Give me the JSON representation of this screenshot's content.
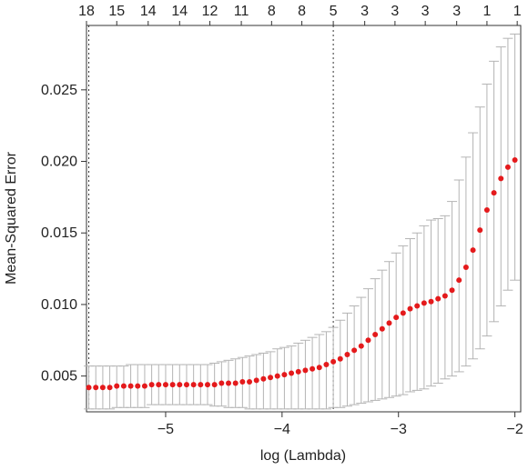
{
  "chart_data": {
    "type": "scatter",
    "title": "",
    "xlabel": "log (Lambda)",
    "ylabel": "Mean-Squared Error",
    "xlim": [
      -5.68,
      -1.95
    ],
    "ylim": [
      0.0025,
      0.0295
    ],
    "x_ticks": [
      -5,
      -4,
      -3,
      -2
    ],
    "x_tick_labels": [
      "−5",
      "−4",
      "−3",
      "−2"
    ],
    "y_ticks": [
      0.005,
      0.01,
      0.015,
      0.02,
      0.025
    ],
    "y_tick_labels": [
      "0.005",
      "0.010",
      "0.015",
      "0.020",
      "0.025"
    ],
    "top_axis": {
      "x": [
        -5.68,
        -5.42,
        -5.15,
        -4.88,
        -4.62,
        -4.35,
        -4.09,
        -3.83,
        -3.56,
        -3.29,
        -3.03,
        -2.77,
        -2.5,
        -2.24,
        -1.98
      ],
      "labels": [
        "18",
        "15",
        "14",
        "14",
        "12",
        "11",
        "8",
        "8",
        "5",
        "3",
        "3",
        "3",
        "3",
        "1",
        "1"
      ]
    },
    "vlines": [
      -5.66,
      -3.56
    ],
    "grid": false,
    "point_color": "#e41a1c",
    "errorbar_color": "#b4b4b4",
    "points": {
      "x": [
        -5.66,
        -5.6,
        -5.54,
        -5.48,
        -5.42,
        -5.36,
        -5.3,
        -5.24,
        -5.18,
        -5.12,
        -5.06,
        -5.0,
        -4.94,
        -4.88,
        -4.82,
        -4.76,
        -4.7,
        -4.64,
        -4.58,
        -4.52,
        -4.46,
        -4.4,
        -4.34,
        -4.28,
        -4.22,
        -4.16,
        -4.1,
        -4.04,
        -3.98,
        -3.92,
        -3.86,
        -3.8,
        -3.74,
        -3.68,
        -3.62,
        -3.56,
        -3.5,
        -3.44,
        -3.38,
        -3.32,
        -3.26,
        -3.2,
        -3.14,
        -3.08,
        -3.02,
        -2.96,
        -2.9,
        -2.84,
        -2.78,
        -2.72,
        -2.66,
        -2.6,
        -2.54,
        -2.48,
        -2.42,
        -2.36,
        -2.3,
        -2.24,
        -2.18,
        -2.12,
        -2.06,
        -2.0
      ],
      "y": [
        0.0042,
        0.0042,
        0.0042,
        0.0042,
        0.0043,
        0.0043,
        0.0043,
        0.0043,
        0.0043,
        0.0044,
        0.0044,
        0.0044,
        0.0044,
        0.0044,
        0.0044,
        0.0044,
        0.0044,
        0.0044,
        0.0044,
        0.0045,
        0.0045,
        0.0045,
        0.0046,
        0.0046,
        0.0047,
        0.0048,
        0.0049,
        0.005,
        0.0051,
        0.0052,
        0.0053,
        0.0054,
        0.0055,
        0.0056,
        0.0058,
        0.006,
        0.0062,
        0.0065,
        0.0068,
        0.0071,
        0.0075,
        0.0079,
        0.0083,
        0.0087,
        0.0091,
        0.0094,
        0.0097,
        0.0099,
        0.0101,
        0.0102,
        0.0104,
        0.0106,
        0.011,
        0.0117,
        0.0126,
        0.0138,
        0.0152,
        0.0166,
        0.0178,
        0.0188,
        0.0196,
        0.0201
      ],
      "upper": [
        0.0057,
        0.0057,
        0.0057,
        0.0057,
        0.0057,
        0.0057,
        0.0058,
        0.0058,
        0.0058,
        0.0058,
        0.0058,
        0.0058,
        0.0058,
        0.0058,
        0.0058,
        0.0058,
        0.0058,
        0.0058,
        0.0059,
        0.006,
        0.0061,
        0.0062,
        0.0063,
        0.0064,
        0.0065,
        0.0066,
        0.0067,
        0.0069,
        0.007,
        0.0071,
        0.0073,
        0.0075,
        0.0077,
        0.0079,
        0.0081,
        0.0084,
        0.0089,
        0.0094,
        0.0099,
        0.0105,
        0.0111,
        0.0118,
        0.0124,
        0.013,
        0.0136,
        0.0141,
        0.0146,
        0.015,
        0.0155,
        0.0159,
        0.016,
        0.0162,
        0.0172,
        0.0187,
        0.0203,
        0.022,
        0.0238,
        0.0254,
        0.027,
        0.028,
        0.0286,
        0.0289
      ],
      "lower": [
        0.0027,
        0.0027,
        0.0027,
        0.0027,
        0.0028,
        0.0028,
        0.0028,
        0.0028,
        0.0028,
        0.003,
        0.003,
        0.003,
        0.003,
        0.003,
        0.003,
        0.003,
        0.003,
        0.003,
        0.0029,
        0.0029,
        0.0028,
        0.0028,
        0.0028,
        0.0027,
        0.0027,
        0.0027,
        0.0027,
        0.0027,
        0.0027,
        0.0027,
        0.0027,
        0.0027,
        0.0027,
        0.0027,
        0.0027,
        0.0028,
        0.0028,
        0.0029,
        0.003,
        0.0031,
        0.0032,
        0.0033,
        0.0034,
        0.0035,
        0.0036,
        0.0037,
        0.0039,
        0.004,
        0.0041,
        0.0043,
        0.0045,
        0.0048,
        0.005,
        0.0053,
        0.0057,
        0.0062,
        0.0069,
        0.0078,
        0.0088,
        0.0099,
        0.011,
        0.0117
      ]
    }
  }
}
